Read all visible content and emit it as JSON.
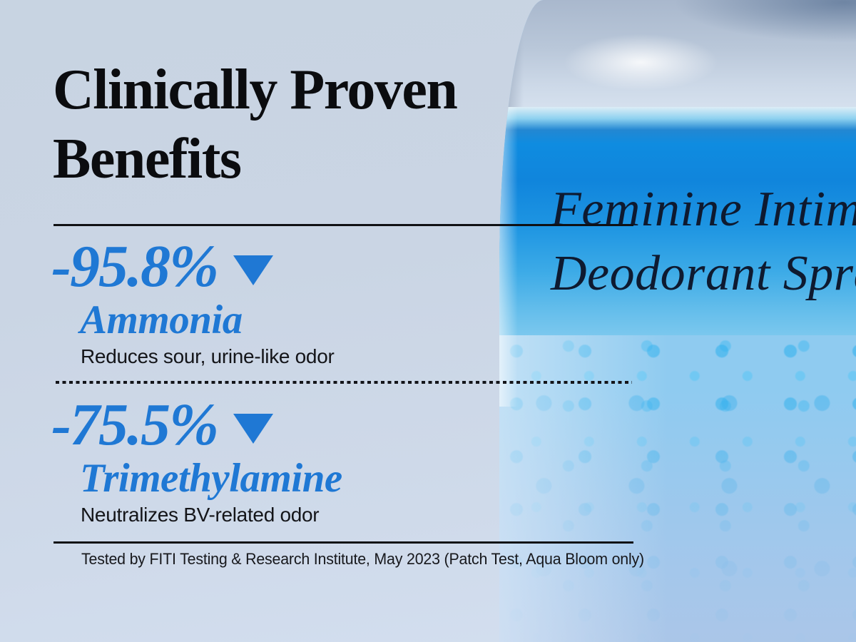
{
  "header": {
    "title_line1": "Clinically Proven",
    "title_line2": "Benefits"
  },
  "benefits": [
    {
      "value": "-95.8%",
      "substance": "Ammonia",
      "description": "Reduces sour, urine-like odor",
      "trend_icon": "triangle-down"
    },
    {
      "value": "-75.5%",
      "substance": "Trimethylamine",
      "description": "Neutralizes BV-related odor",
      "trend_icon": "triangle-down"
    }
  ],
  "footnote": "Tested by FITI Testing & Research Institute, May 2023 (Patch Test, Aqua Bloom only)",
  "product_label": {
    "line1": "Feminine Intimate",
    "line2": "Deodorant Spray"
  },
  "colors": {
    "accent_blue": "#1f78d4",
    "text_black": "#0b0c0f",
    "background_tint": "#cbd6e4",
    "liquid_blue": "#1085dc",
    "foam_blue": "#8fcbf0"
  }
}
